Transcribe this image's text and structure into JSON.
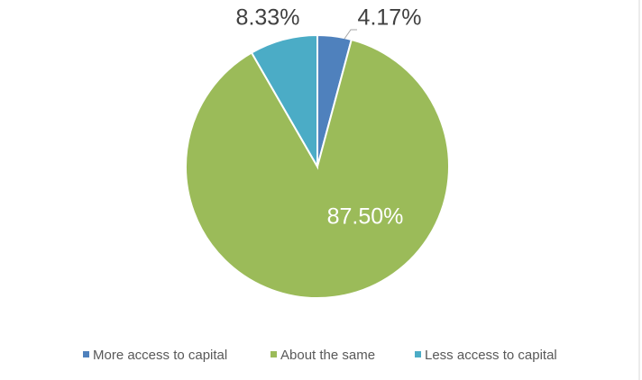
{
  "chart_data": {
    "type": "pie",
    "categories": [
      "More access to capital",
      "About the same",
      "Less access to capital"
    ],
    "values": [
      4.17,
      87.5,
      8.33
    ],
    "value_labels": [
      "4.17%",
      "87.50%",
      "8.33%"
    ],
    "colors": [
      "#4f81bd",
      "#9bbb59",
      "#4bacc6"
    ],
    "legend": "bottom"
  }
}
